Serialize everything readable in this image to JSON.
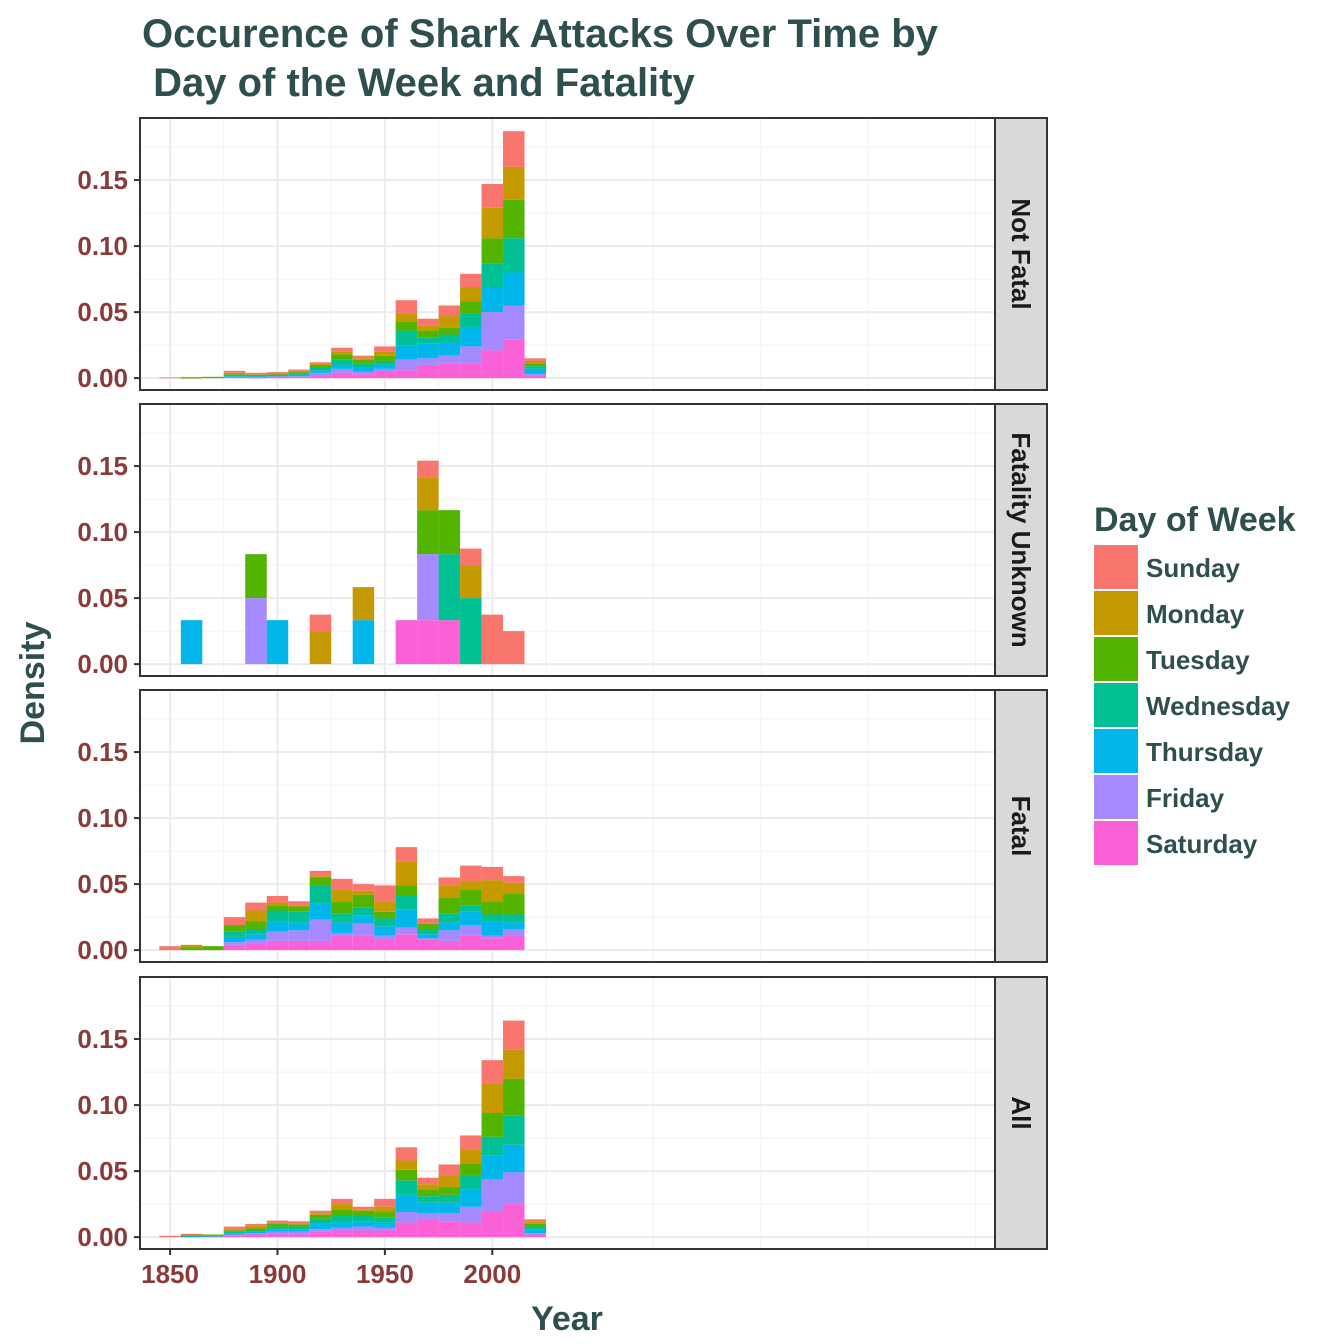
{
  "chart_data": {
    "type": "bar",
    "stacked": true,
    "faceted": true,
    "title_lines": [
      "Occurence of Shark Attacks Over Time by",
      " Day of the Week and Fatality"
    ],
    "xlabel": "Year",
    "ylabel": "Density",
    "xlim": [
      1836,
      2234
    ],
    "ylim": [
      -0.009,
      0.197
    ],
    "x_ticks": [
      1850,
      1900,
      1950,
      2000
    ],
    "x_tick_labels": [
      "1850",
      "1900",
      "1950",
      "2000"
    ],
    "y_ticks": [
      0,
      0.05,
      0.1,
      0.15
    ],
    "y_tick_labels": [
      "0.00",
      "0.05",
      "0.10",
      "0.15"
    ],
    "grid": true,
    "legend": {
      "title": "Day of Week",
      "position": "right",
      "items": [
        {
          "label": "Sunday",
          "color": "#F8766D"
        },
        {
          "label": "Monday",
          "color": "#C49A00"
        },
        {
          "label": "Tuesday",
          "color": "#53B400"
        },
        {
          "label": "Wednesday",
          "color": "#00C094"
        },
        {
          "label": "Thursday",
          "color": "#00B6EB"
        },
        {
          "label": "Friday",
          "color": "#A58AFF"
        },
        {
          "label": "Saturday",
          "color": "#FB61D7"
        }
      ]
    },
    "bin_centers": [
      1850,
      1860,
      1870,
      1880,
      1890,
      1900,
      1910,
      1920,
      1930,
      1940,
      1950,
      1960,
      1970,
      1980,
      1990,
      2000,
      2010,
      2020
    ],
    "panels": [
      {
        "label": "Not Fatal",
        "stacks": [
          [
            0.0005,
            0,
            0,
            0,
            0,
            0,
            0
          ],
          [
            0.0003,
            0.0003,
            0.0003,
            0,
            0,
            0,
            0
          ],
          [
            0,
            0,
            0.001,
            0,
            0,
            0,
            0
          ],
          [
            0.0015,
            0.001,
            0.001,
            0,
            0.001,
            0,
            0.001
          ],
          [
            0.001,
            0.0005,
            0.0005,
            0.0005,
            0.0005,
            0.0005,
            0.0005
          ],
          [
            0.001,
            0.0005,
            0.0005,
            0.0005,
            0.0005,
            0.0005,
            0.001
          ],
          [
            0.001,
            0.001,
            0.001,
            0.001,
            0.001,
            0.0005,
            0.001
          ],
          [
            0.001,
            0.001,
            0.002,
            0.002,
            0.002,
            0.002,
            0.002
          ],
          [
            0.003,
            0.002,
            0.004,
            0.004,
            0.003,
            0.003,
            0.004
          ],
          [
            0.002,
            0.001,
            0.003,
            0.003,
            0.003,
            0.002,
            0.003
          ],
          [
            0.004,
            0.003,
            0.004,
            0.003,
            0.003,
            0.002,
            0.005
          ],
          [
            0.01,
            0.006,
            0.007,
            0.011,
            0.011,
            0.008,
            0.006
          ],
          [
            0.005,
            0.004,
            0.005,
            0.005,
            0.011,
            0.005,
            0.01
          ],
          [
            0.008,
            0.009,
            0.005,
            0.006,
            0.01,
            0.006,
            0.011
          ],
          [
            0.01,
            0.011,
            0.009,
            0.011,
            0.014,
            0.013,
            0.011
          ],
          [
            0.018,
            0.023,
            0.019,
            0.018,
            0.019,
            0.029,
            0.021
          ],
          [
            0.027,
            0.025,
            0.029,
            0.026,
            0.025,
            0.026,
            0.029
          ],
          [
            0.002,
            0.002,
            0.002,
            0.002,
            0.004,
            0.001,
            0.002
          ]
        ]
      },
      {
        "label": "Fatality Unknown",
        "stacks": [
          [
            0,
            0,
            0,
            0,
            0,
            0,
            0
          ],
          [
            0,
            0,
            0,
            0,
            0.0333,
            0,
            0
          ],
          [
            0,
            0,
            0,
            0,
            0,
            0,
            0
          ],
          [
            0,
            0,
            0,
            0,
            0,
            0,
            0
          ],
          [
            0,
            0,
            0.0333,
            0,
            0,
            0.05,
            0
          ],
          [
            0,
            0,
            0,
            0,
            0.0333,
            0,
            0
          ],
          [
            0,
            0,
            0,
            0,
            0,
            0,
            0
          ],
          [
            0.0125,
            0.025,
            0,
            0,
            0,
            0,
            0
          ],
          [
            0,
            0,
            0,
            0,
            0,
            0,
            0
          ],
          [
            0,
            0.025,
            0,
            0,
            0.0333,
            0,
            0
          ],
          [
            0,
            0,
            0,
            0,
            0,
            0,
            0
          ],
          [
            0,
            0,
            0,
            0,
            0,
            0,
            0.0333
          ],
          [
            0.0125,
            0.025,
            0.0333,
            0,
            0,
            0.05,
            0.0333
          ],
          [
            0,
            0,
            0.0333,
            0.05,
            0,
            0,
            0.0333
          ],
          [
            0.0125,
            0.025,
            0,
            0.05,
            0,
            0,
            0
          ],
          [
            0.0375,
            0,
            0,
            0,
            0,
            0,
            0
          ],
          [
            0.025,
            0,
            0,
            0,
            0,
            0,
            0
          ],
          [
            0,
            0,
            0,
            0,
            0,
            0,
            0
          ]
        ]
      },
      {
        "label": "Fatal",
        "stacks": [
          [
            0.003,
            0,
            0,
            0,
            0,
            0,
            0
          ],
          [
            0,
            0.002,
            0.002,
            0,
            0,
            0,
            0
          ],
          [
            0,
            0,
            0.003,
            0,
            0,
            0,
            0
          ],
          [
            0.006,
            0,
            0.005,
            0.004,
            0.004,
            0.002,
            0.004
          ],
          [
            0.006,
            0.008,
            0.006,
            0.004,
            0.004,
            0.003,
            0.005
          ],
          [
            0.005,
            0.002,
            0.004,
            0.008,
            0.008,
            0.007,
            0.007
          ],
          [
            0.003,
            0.001,
            0.004,
            0.008,
            0.006,
            0.008,
            0.007
          ],
          [
            0.004,
            0.001,
            0.006,
            0.014,
            0.012,
            0.016,
            0.007
          ],
          [
            0.008,
            0.009,
            0.009,
            0.007,
            0.008,
            0.002,
            0.011
          ],
          [
            0.005,
            0.003,
            0.01,
            0.006,
            0.006,
            0.009,
            0.011
          ],
          [
            0.012,
            0.008,
            0.005,
            0.006,
            0.007,
            0.003,
            0.008
          ],
          [
            0.011,
            0.018,
            0.008,
            0.01,
            0.014,
            0.005,
            0.012
          ],
          [
            0.004,
            0,
            0.004,
            0.004,
            0.003,
            0.001,
            0.008
          ],
          [
            0.006,
            0.009,
            0.012,
            0.007,
            0.006,
            0.008,
            0.007
          ],
          [
            0.012,
            0.006,
            0.012,
            0.005,
            0.01,
            0.008,
            0.011
          ],
          [
            0.01,
            0.016,
            0.01,
            0.005,
            0.011,
            0.002,
            0.009
          ],
          [
            0.005,
            0.008,
            0.016,
            0.006,
            0.005,
            0.005,
            0.011
          ],
          [
            0,
            0,
            0,
            0,
            0,
            0,
            0
          ]
        ]
      },
      {
        "label": "All",
        "stacks": [
          [
            0.001,
            0,
            0,
            0,
            0,
            0,
            0
          ],
          [
            0.0005,
            0.0005,
            0.0005,
            0.0005,
            0.0005,
            0,
            0
          ],
          [
            0,
            0,
            0.001,
            0.0005,
            0,
            0,
            0.0005
          ],
          [
            0.002,
            0.001,
            0.001,
            0.001,
            0.001,
            0.001,
            0.001
          ],
          [
            0.0015,
            0.002,
            0.0015,
            0.001,
            0.001,
            0.001,
            0.002
          ],
          [
            0.0015,
            0.001,
            0.002,
            0.002,
            0.002,
            0.002,
            0.002
          ],
          [
            0.0015,
            0.001,
            0.0015,
            0.002,
            0.002,
            0.002,
            0.002
          ],
          [
            0.002,
            0.001,
            0.003,
            0.004,
            0.004,
            0.002,
            0.004
          ],
          [
            0.004,
            0.004,
            0.005,
            0.005,
            0.004,
            0.002,
            0.005
          ],
          [
            0.002,
            0.001,
            0.004,
            0.004,
            0.004,
            0.003,
            0.005
          ],
          [
            0.006,
            0.004,
            0.004,
            0.004,
            0.004,
            0.002,
            0.005
          ],
          [
            0.01,
            0.007,
            0.008,
            0.011,
            0.013,
            0.008,
            0.011
          ],
          [
            0.005,
            0.004,
            0.005,
            0.005,
            0.008,
            0.005,
            0.013
          ],
          [
            0.008,
            0.009,
            0.006,
            0.006,
            0.008,
            0.006,
            0.012
          ],
          [
            0.011,
            0.01,
            0.009,
            0.011,
            0.013,
            0.012,
            0.011
          ],
          [
            0.018,
            0.022,
            0.018,
            0.014,
            0.018,
            0.025,
            0.019
          ],
          [
            0.022,
            0.022,
            0.028,
            0.022,
            0.021,
            0.024,
            0.025
          ],
          [
            0.0015,
            0.002,
            0.002,
            0.002,
            0.003,
            0.001,
            0.002
          ]
        ]
      }
    ]
  }
}
